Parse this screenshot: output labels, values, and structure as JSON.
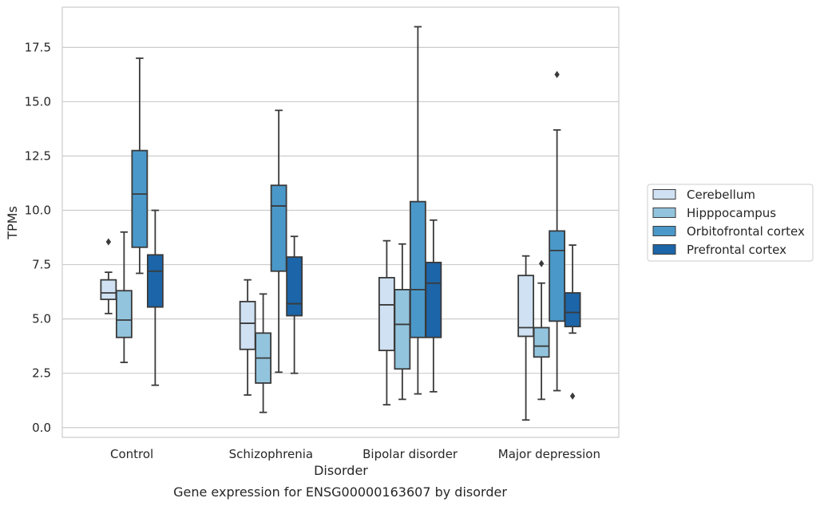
{
  "chart_data": {
    "type": "box",
    "xlabel": "Disorder",
    "ylabel": "TPMs",
    "caption": "Gene expression for ENSG00000163607 by disorder",
    "categories": [
      "Control",
      "Schizophrenia",
      "Bipolar disorder",
      "Major depression"
    ],
    "ylim": [
      -0.45,
      19.35
    ],
    "yticks": [
      0.0,
      2.5,
      5.0,
      7.5,
      10.0,
      12.5,
      15.0,
      17.5
    ],
    "ytick_labels": [
      "0.0",
      "2.5",
      "5.0",
      "7.5",
      "10.0",
      "12.5",
      "15.0",
      "17.5"
    ],
    "grid": "horizontal",
    "legend_position": "right",
    "series": [
      {
        "name": "Cerebellum",
        "color": "#cfe1f2",
        "boxes": [
          {
            "whisker_low": 5.25,
            "q1": 5.9,
            "median": 6.2,
            "q3": 6.8,
            "whisker_high": 7.15,
            "outliers": [
              8.55
            ]
          },
          {
            "whisker_low": 1.5,
            "q1": 3.6,
            "median": 4.8,
            "q3": 5.8,
            "whisker_high": 6.8,
            "outliers": []
          },
          {
            "whisker_low": 1.05,
            "q1": 3.55,
            "median": 5.65,
            "q3": 6.9,
            "whisker_high": 8.6,
            "outliers": []
          },
          {
            "whisker_low": 0.35,
            "q1": 4.2,
            "median": 4.6,
            "q3": 7.0,
            "whisker_high": 7.9,
            "outliers": []
          }
        ]
      },
      {
        "name": "Hipppocampus",
        "color": "#93c4de",
        "boxes": [
          {
            "whisker_low": 3.0,
            "q1": 4.15,
            "median": 4.95,
            "q3": 6.3,
            "whisker_high": 9.0,
            "outliers": []
          },
          {
            "whisker_low": 0.7,
            "q1": 2.05,
            "median": 3.2,
            "q3": 4.35,
            "whisker_high": 6.15,
            "outliers": []
          },
          {
            "whisker_low": 1.3,
            "q1": 2.7,
            "median": 4.75,
            "q3": 6.35,
            "whisker_high": 8.45,
            "outliers": []
          },
          {
            "whisker_low": 1.3,
            "q1": 3.25,
            "median": 3.75,
            "q3": 4.6,
            "whisker_high": 6.65,
            "outliers": [
              7.55
            ]
          }
        ]
      },
      {
        "name": "Orbitofrontal cortex",
        "color": "#4a98c9",
        "boxes": [
          {
            "whisker_low": 7.1,
            "q1": 8.3,
            "median": 10.75,
            "q3": 12.75,
            "whisker_high": 17.0,
            "outliers": []
          },
          {
            "whisker_low": 2.55,
            "q1": 7.2,
            "median": 10.2,
            "q3": 11.15,
            "whisker_high": 14.6,
            "outliers": []
          },
          {
            "whisker_low": 1.55,
            "q1": 4.15,
            "median": 6.35,
            "q3": 10.4,
            "whisker_high": 18.45,
            "outliers": []
          },
          {
            "whisker_low": 1.7,
            "q1": 4.9,
            "median": 8.15,
            "q3": 9.05,
            "whisker_high": 13.7,
            "outliers": [
              16.25
            ]
          }
        ]
      },
      {
        "name": "Prefrontal cortex",
        "color": "#1c65a8",
        "boxes": [
          {
            "whisker_low": 1.95,
            "q1": 5.55,
            "median": 7.2,
            "q3": 7.95,
            "whisker_high": 10.0,
            "outliers": []
          },
          {
            "whisker_low": 2.5,
            "q1": 5.15,
            "median": 5.7,
            "q3": 7.85,
            "whisker_high": 8.8,
            "outliers": []
          },
          {
            "whisker_low": 1.65,
            "q1": 4.15,
            "median": 6.65,
            "q3": 7.6,
            "whisker_high": 9.55,
            "outliers": []
          },
          {
            "whisker_low": 4.35,
            "q1": 4.65,
            "median": 5.3,
            "q3": 6.2,
            "whisker_high": 8.4,
            "outliers": [
              1.45
            ]
          }
        ]
      }
    ]
  }
}
